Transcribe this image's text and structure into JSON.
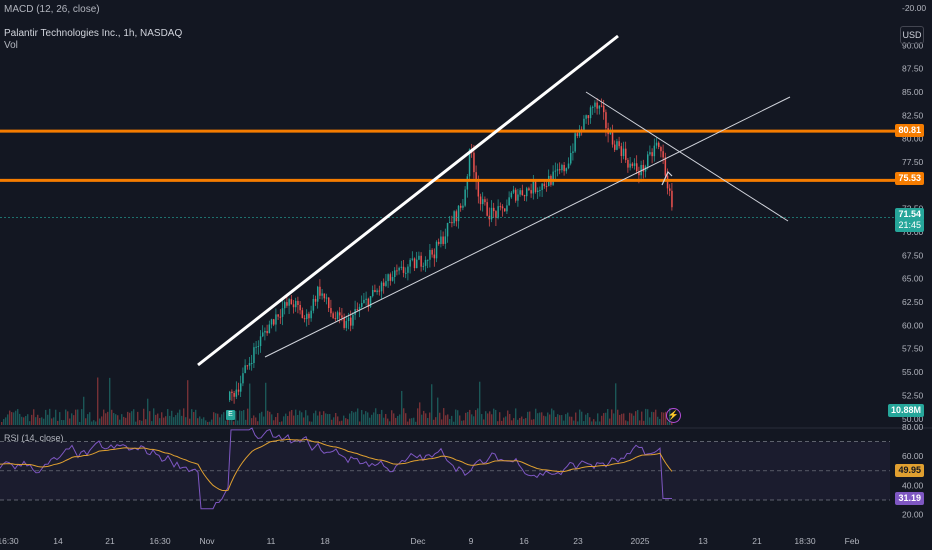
{
  "legend": {
    "macd": "MACD (12, 26, close)",
    "symbol": "Palantir Technologies Inc., 1h, NASDAQ",
    "vol": "Vol",
    "rsi": "RSI (14, close)"
  },
  "currency": "USD",
  "price_axis": {
    "ticks": [
      "-20.00",
      "90.00",
      "87.50",
      "85.00",
      "82.50",
      "80.00",
      "77.50",
      "72.50",
      "70.00",
      "67.50",
      "65.00",
      "62.50",
      "60.00",
      "57.50",
      "55.00",
      "52.50",
      "50.00"
    ],
    "tags": {
      "level_high": "80.81",
      "level_low": "75.53",
      "last_price": "71.54",
      "countdown": "21:45",
      "volume": "10.88M"
    }
  },
  "rsi_axis": {
    "ticks": [
      "80.00",
      "60.00",
      "40.00",
      "20.00"
    ],
    "tags": {
      "ma": "49.95",
      "rsi": "31.19"
    }
  },
  "time_axis": [
    "16:30",
    "14",
    "21",
    "16:30",
    "Nov",
    "11",
    "18",
    "Dec",
    "9",
    "16",
    "23",
    "2025",
    "13",
    "21",
    "18:30",
    "Feb"
  ],
  "colors": {
    "background": "#131722",
    "up": "#26a69a",
    "down": "#ef5350",
    "level_line": "#f57c00",
    "trend_white": "#ffffff",
    "rsi_line": "#7e57c2",
    "rsi_ma": "#e0a030"
  },
  "badges": {
    "flag": "E",
    "bolt": "⚡"
  }
}
